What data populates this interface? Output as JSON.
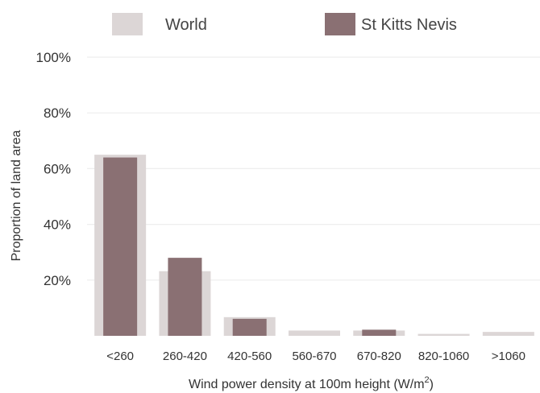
{
  "chart_data": {
    "type": "bar",
    "categories": [
      "<260",
      "260-420",
      "420-560",
      "560-670",
      "670-820",
      "820-1060",
      ">1060"
    ],
    "series": [
      {
        "name": "World",
        "color": "#dcd6d6",
        "values": [
          65,
          23.2,
          6.7,
          1.9,
          1.9,
          0.7,
          1.4
        ]
      },
      {
        "name": "St Kitts Nevis",
        "color": "#8a7073",
        "values": [
          64,
          28,
          6.1,
          0,
          2.2,
          0,
          0
        ]
      }
    ],
    "title": "",
    "xlabel_main": "Wind power density at 100m height (W/m",
    "xlabel_sup": "2",
    "xlabel_close": ")",
    "ylabel": "Proportion of land area",
    "ylim": [
      0,
      100
    ],
    "yticks": [
      "20%",
      "40%",
      "60%",
      "80%",
      "100%"
    ],
    "ytick_values": [
      20,
      40,
      60,
      80,
      100
    ],
    "grid": true,
    "legend_position": "top"
  }
}
